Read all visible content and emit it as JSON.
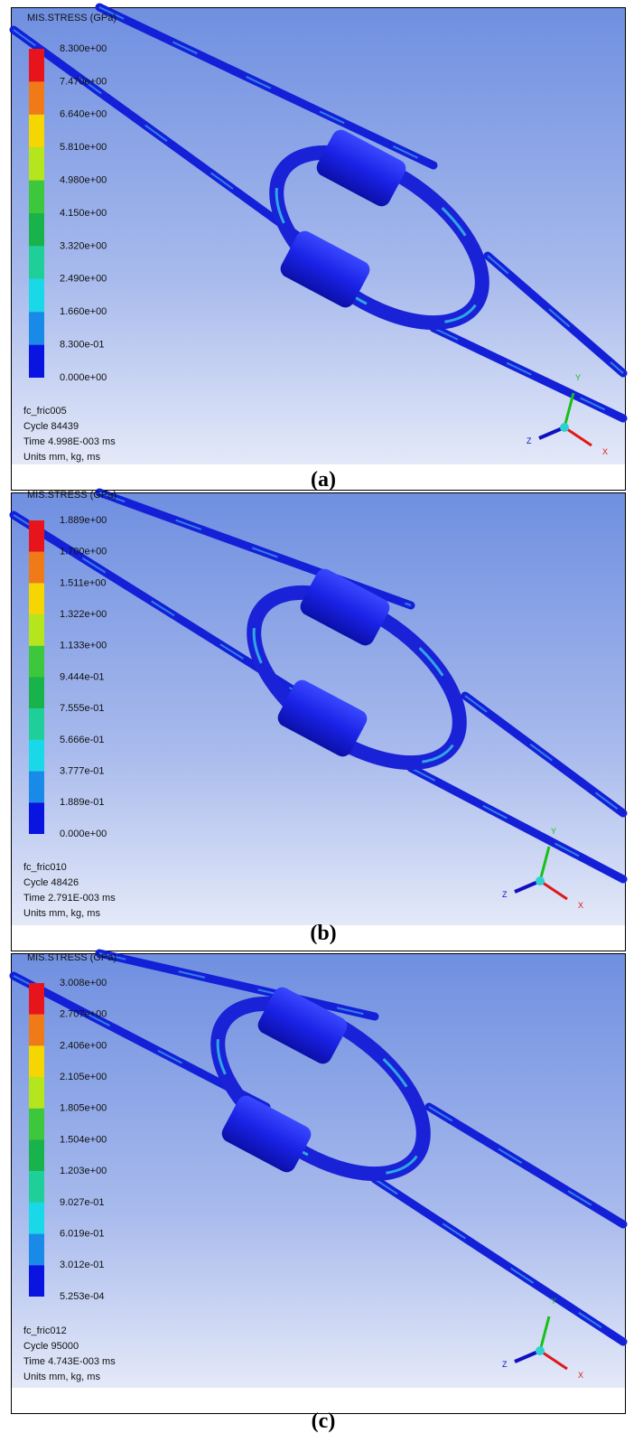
{
  "panels": [
    {
      "legend_title": "MIS.STRESS (GPa)",
      "legend_labels": [
        "8.300e+00",
        "7.470e+00",
        "6.640e+00",
        "5.810e+00",
        "4.980e+00",
        "4.150e+00",
        "3.320e+00",
        "2.490e+00",
        "1.660e+00",
        "8.300e-01",
        "0.000e+00"
      ],
      "info": [
        "fc_fric005",
        "Cycle 84439",
        "Time 4.998E-003 ms",
        "Units mm, kg, ms"
      ],
      "axes": [
        "Y",
        "Z",
        "X"
      ],
      "caption": "(a)"
    },
    {
      "legend_title": "MIS.STRESS (GPa)",
      "legend_labels": [
        "1.889e+00",
        "1.700e+00",
        "1.511e+00",
        "1.322e+00",
        "1.133e+00",
        "9.444e-01",
        "7.555e-01",
        "5.666e-01",
        "3.777e-01",
        "1.889e-01",
        "0.000e+00"
      ],
      "info": [
        "fc_fric010",
        "Cycle 48426",
        "Time 2.791E-003 ms",
        "Units mm, kg, ms"
      ],
      "axes": [
        "Y",
        "Z",
        "X"
      ],
      "caption": "(b)"
    },
    {
      "legend_title": "MIS.STRESS (GPa)",
      "legend_labels": [
        "3.008e+00",
        "2.707e+00",
        "2.406e+00",
        "2.105e+00",
        "1.805e+00",
        "1.504e+00",
        "1.203e+00",
        "9.027e-01",
        "6.019e-01",
        "3.012e-01",
        "5.253e-04"
      ],
      "info": [
        "fc_fric012",
        "Cycle 95000",
        "Time 4.743E-003 ms",
        "Units mm, kg, ms"
      ],
      "axes": [
        "Y",
        "Z",
        "X"
      ],
      "caption": "(c)"
    }
  ]
}
